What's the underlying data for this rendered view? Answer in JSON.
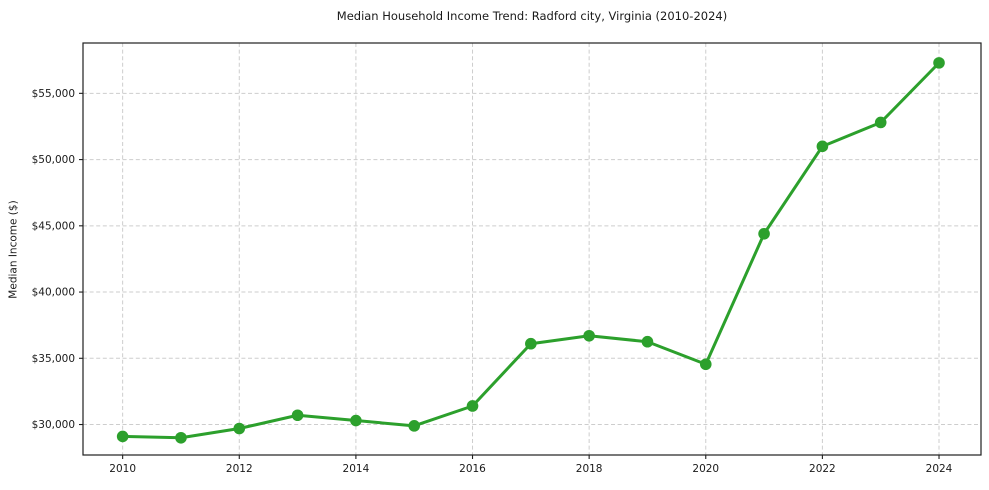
{
  "chart_data": {
    "type": "line",
    "title": "Median Household Income Trend: Radford city, Virginia (2010-2024)",
    "xlabel": "",
    "ylabel": "Median Income ($)",
    "series_name": "Median Household Income",
    "x": [
      2010,
      2011,
      2012,
      2013,
      2014,
      2015,
      2016,
      2017,
      2018,
      2019,
      2020,
      2021,
      2022,
      2023,
      2024
    ],
    "values": [
      29100,
      29000,
      29700,
      30700,
      30300,
      29900,
      31400,
      36100,
      36700,
      36250,
      34550,
      44400,
      51000,
      52800,
      57300
    ],
    "xlim": [
      2009.32,
      2024.72
    ],
    "ylim": [
      27700,
      58800
    ],
    "yticks": {
      "values": [
        30000,
        35000,
        40000,
        45000,
        50000,
        55000
      ],
      "labels": [
        "$30,000",
        "$35,000",
        "$40,000",
        "$45,000",
        "$50,000",
        "$55,000"
      ]
    },
    "xticks": {
      "values": [
        2010,
        2012,
        2014,
        2016,
        2018,
        2020,
        2022,
        2024
      ],
      "labels": [
        "2010",
        "2012",
        "2014",
        "2016",
        "2018",
        "2020",
        "2022",
        "2024"
      ]
    },
    "grid": true,
    "grid_style": "dashed",
    "legend_position": "none",
    "colors": {
      "line": "#2ca02c",
      "marker": "#2ca02c",
      "grid": "#cdcdcd",
      "spine": "#1f1f1f",
      "text": "#1a1a1a",
      "background": "#ffffff"
    }
  }
}
